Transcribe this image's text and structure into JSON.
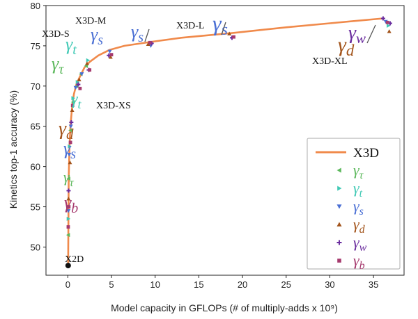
{
  "chart_data": {
    "type": "line",
    "title": "",
    "xlabel": "Model capacity in GFLOPs (# of multiply-adds x 10⁹)",
    "ylabel": "Kinetics top-1 accuracy (%)",
    "xlim": [
      -2.5,
      38.5
    ],
    "ylim": [
      46.5,
      80
    ],
    "xticks": [
      0,
      5,
      10,
      15,
      20,
      25,
      30,
      35
    ],
    "yticks": [
      50,
      55,
      60,
      65,
      70,
      75,
      80
    ],
    "grid": false,
    "legend_position": "bottom-right",
    "main_series": {
      "name": "X3D",
      "color": "#f08a4b",
      "x": [
        0.04,
        0.1,
        0.2,
        0.3,
        0.5,
        0.7,
        1.0,
        1.4,
        1.9,
        2.5,
        3.5,
        4.8,
        6.5,
        9.6,
        13,
        18.9,
        25,
        30,
        36.1
      ],
      "y": [
        47.7,
        58.5,
        62.5,
        65.0,
        67.5,
        69.0,
        70.3,
        71.2,
        72.3,
        73.0,
        73.8,
        74.5,
        75.0,
        75.5,
        76.0,
        76.6,
        77.3,
        77.8,
        78.4
      ]
    },
    "scatter_series": [
      {
        "name": "γτ",
        "symbol": "γ",
        "sub": "τ",
        "marker": "triangle-left",
        "color": "#5cb85c",
        "x": [
          0.05,
          0.1,
          0.3,
          0.6,
          1.0,
          1.5,
          2.1
        ],
        "y": [
          51.5,
          58.5,
          64.5,
          68.0,
          70.0,
          71.5,
          72.5
        ]
      },
      {
        "name": "γt",
        "symbol": "γ",
        "sub": "t",
        "marker": "triangle-right",
        "color": "#40c9b5",
        "x": [
          0.06,
          0.2,
          0.6,
          1.1,
          2.3,
          36.7
        ],
        "y": [
          53.5,
          62.5,
          68.5,
          70.5,
          73.2,
          77.5
        ]
      },
      {
        "name": "γs",
        "symbol": "γ",
        "sub": "s",
        "marker": "triangle-down",
        "color": "#4a6fd4",
        "x": [
          0.07,
          0.15,
          0.35,
          0.9,
          1.6,
          4.8,
          9.5,
          36.4
        ],
        "y": [
          54.5,
          61.5,
          65.0,
          69.8,
          71.5,
          74.3,
          75.0,
          78.0
        ]
      },
      {
        "name": "γd",
        "symbol": "γ",
        "sub": "d",
        "marker": "triangle-up",
        "color": "#a2531a",
        "x": [
          0.08,
          0.25,
          0.5,
          1.3,
          2.2,
          4.9,
          9.2,
          18.5,
          36.8
        ],
        "y": [
          56.0,
          60.5,
          67.0,
          70.8,
          72.8,
          73.6,
          75.2,
          76.5,
          76.8
        ]
      },
      {
        "name": "γw",
        "symbol": "γ",
        "sub": "w",
        "marker": "plus",
        "color": "#6a2c9e",
        "x": [
          0.09,
          0.4,
          1.2,
          2.4,
          4.7,
          9.6,
          18.8,
          36.1,
          36.9
        ],
        "y": [
          57.0,
          65.5,
          70.2,
          72.0,
          73.8,
          75.3,
          76.0,
          78.4,
          77.8
        ]
      },
      {
        "name": "γb",
        "symbol": "γ",
        "sub": "b",
        "marker": "square",
        "color": "#a63a6e",
        "x": [
          0.05,
          0.12,
          0.3,
          0.55,
          1.4,
          2.5,
          5.0,
          9.4,
          19.0,
          36.6
        ],
        "y": [
          52.5,
          55.0,
          63.0,
          67.6,
          69.7,
          72.0,
          73.9,
          75.4,
          76.1,
          77.9
        ]
      }
    ],
    "start_point": {
      "label": "X2D",
      "x": 0.04,
      "y": 47.7
    },
    "annotations": {
      "model_labels": [
        {
          "text": "X2D"
        },
        {
          "text": "X3D-XS"
        },
        {
          "text": "X3D-S"
        },
        {
          "text": "X3D-M"
        },
        {
          "text": "X3D-L"
        },
        {
          "text": "X3D-XL"
        }
      ],
      "gamma_labels": [
        {
          "symbol": "γ",
          "sub": "b",
          "color": "#a63a6e"
        },
        {
          "symbol": "γ",
          "sub": "τ",
          "color": "#5cb85c"
        },
        {
          "symbol": "γ",
          "sub": "s",
          "color": "#4a6fd4"
        },
        {
          "symbol": "γ",
          "sub": "d",
          "color": "#a2531a"
        },
        {
          "symbol": "γ",
          "sub": "t",
          "color": "#40c9b5"
        },
        {
          "symbol": "γ",
          "sub": "τ",
          "color": "#5cb85c"
        },
        {
          "symbol": "γ",
          "sub": "t",
          "color": "#40c9b5"
        },
        {
          "symbol": "γ",
          "sub": "s",
          "color": "#4a6fd4"
        },
        {
          "symbol": "γ",
          "sub": "s",
          "color": "#4a6fd4"
        },
        {
          "symbol": "γ",
          "sub": "s",
          "color": "#4a6fd4"
        },
        {
          "symbol": "γ",
          "sub": "d",
          "color": "#a2531a"
        },
        {
          "symbol": "γ",
          "sub": "w",
          "color": "#6a2c9e"
        }
      ]
    },
    "legend": {
      "entries": [
        {
          "label": "X3D",
          "kind": "line",
          "color": "#f08a4b"
        },
        {
          "label": "γτ",
          "symbol": "γ",
          "sub": "τ",
          "kind": "triangle-left",
          "color": "#5cb85c"
        },
        {
          "label": "γt",
          "symbol": "γ",
          "sub": "t",
          "kind": "triangle-right",
          "color": "#40c9b5"
        },
        {
          "label": "γs",
          "symbol": "γ",
          "sub": "s",
          "kind": "triangle-down",
          "color": "#4a6fd4"
        },
        {
          "label": "γd",
          "symbol": "γ",
          "sub": "d",
          "kind": "triangle-up",
          "color": "#a2531a"
        },
        {
          "label": "γw",
          "symbol": "γ",
          "sub": "w",
          "kind": "plus",
          "color": "#6a2c9e"
        },
        {
          "label": "γb",
          "symbol": "γ",
          "sub": "b",
          "kind": "square",
          "color": "#a63a6e"
        }
      ]
    }
  }
}
